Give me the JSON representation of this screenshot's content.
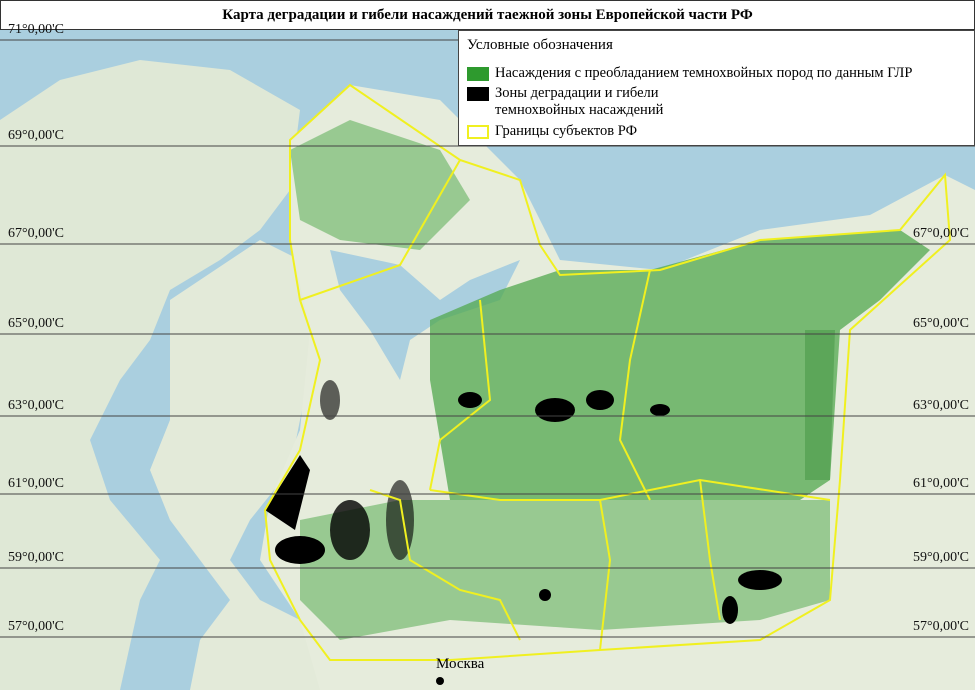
{
  "title": "Карта деградации и гибели насаждений  таежной зоны Европейской части РФ",
  "legend": {
    "header": "Условные обозначения",
    "items": [
      {
        "label": "Насаждения с преобладанием темнохвойных пород по данным ГЛР",
        "color": "#2e9a2e"
      },
      {
        "label": "Зоны деградации и гибели",
        "label2": "темнохвойных насаждений",
        "color": "#000000"
      },
      {
        "label": "Границы субъектов РФ",
        "color": "#f0f020"
      }
    ]
  },
  "grid_left": [
    "71°0,00'C",
    "69°0,00'C",
    "67°0,00'C",
    "65°0,00'C",
    "63°0,00'C",
    "61°0,00'C",
    "59°0,00'C",
    "57°0,00'C"
  ],
  "grid_right": [
    "67°0,00'C",
    "65°0,00'C",
    "63°0,00'C",
    "61°0,00'C",
    "59°0,00'C",
    "57°0,00'C"
  ],
  "city": "Москва",
  "colors": {
    "sea": "#aacfdf",
    "land": "#e4ebdc",
    "forest": "#3f9f3f",
    "degradation": "#000000",
    "boundary": "#f0f020"
  }
}
